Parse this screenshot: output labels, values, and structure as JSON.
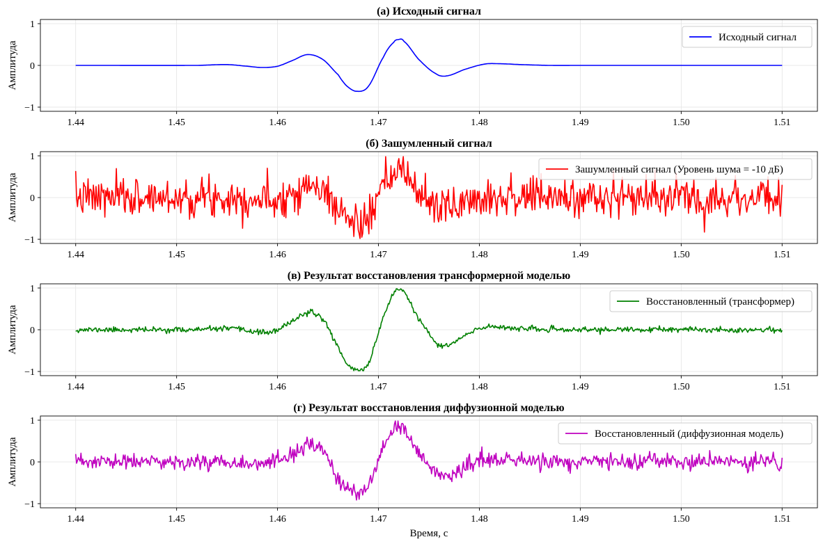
{
  "figure": {
    "xlabel": "Время, с",
    "colors": {
      "grid": "#e3e3e3",
      "axis": "#000000",
      "legend_border": "#cccccc"
    }
  },
  "chart_data": [
    {
      "type": "line",
      "title": "(а) Исходный сигнал",
      "ylabel": "Амплитуда",
      "xlim": [
        1.4365,
        1.5135
      ],
      "ylim": [
        -1.1,
        1.1
      ],
      "xticks": [
        1.44,
        1.45,
        1.46,
        1.47,
        1.48,
        1.49,
        1.5,
        1.51
      ],
      "xtick_labels": [
        "1.44",
        "1.45",
        "1.46",
        "1.47",
        "1.48",
        "1.49",
        "1.50",
        "1.51"
      ],
      "yticks": [
        -1,
        0,
        1
      ],
      "ytick_labels": [
        "−1",
        "0",
        "1"
      ],
      "series": [
        {
          "name": "Исходный сигнал",
          "color": "#0000ff",
          "x": [
            1.44,
            1.452,
            1.455,
            1.457,
            1.4585,
            1.46,
            1.4615,
            1.463,
            1.4645,
            1.466,
            1.4668,
            1.4678,
            1.469,
            1.4705,
            1.4715,
            1.472,
            1.4725,
            1.474,
            1.4757,
            1.4768,
            1.4785,
            1.4805,
            1.482,
            1.484,
            1.487,
            1.49,
            1.51
          ],
          "y": [
            0.0,
            0.0,
            0.02,
            -0.02,
            -0.05,
            -0.02,
            0.12,
            0.26,
            0.14,
            -0.22,
            -0.48,
            -0.62,
            -0.5,
            0.2,
            0.55,
            0.62,
            0.58,
            0.14,
            -0.2,
            -0.25,
            -0.1,
            0.03,
            0.04,
            0.02,
            0.0,
            0.0,
            0.0
          ]
        }
      ],
      "legend": {
        "position": "top-right"
      }
    },
    {
      "type": "line",
      "title": "(б) Зашумленный сигнал",
      "ylabel": "Амплитуда",
      "xlim": [
        1.4365,
        1.5135
      ],
      "ylim": [
        -1.1,
        1.1
      ],
      "xticks": [
        1.44,
        1.45,
        1.46,
        1.47,
        1.48,
        1.49,
        1.5,
        1.51
      ],
      "xtick_labels": [
        "1.44",
        "1.45",
        "1.46",
        "1.47",
        "1.48",
        "1.49",
        "1.50",
        "1.51"
      ],
      "yticks": [
        -1,
        0,
        1
      ],
      "ytick_labels": [
        "−1",
        "0",
        "1"
      ],
      "series": [
        {
          "name": "Зашумленный сигнал (Уровень шума = -10 дБ)",
          "color": "#ff0000",
          "x_range": [
            1.44,
            1.51
          ],
          "n_points": 800,
          "underlying": "Исходный сигнал",
          "noise_std": 0.23,
          "noise_seed": 7
        }
      ],
      "legend": {
        "position": "top-right"
      }
    },
    {
      "type": "line",
      "title": "(в) Результат восстановления трансформерной моделью",
      "ylabel": "Амплитуда",
      "xlim": [
        1.4365,
        1.5135
      ],
      "ylim": [
        -1.1,
        1.1
      ],
      "xticks": [
        1.44,
        1.45,
        1.46,
        1.47,
        1.48,
        1.49,
        1.5,
        1.51
      ],
      "xtick_labels": [
        "1.44",
        "1.45",
        "1.46",
        "1.47",
        "1.48",
        "1.49",
        "1.50",
        "1.51"
      ],
      "yticks": [
        -1,
        0,
        1
      ],
      "ytick_labels": [
        "−1",
        "0",
        "1"
      ],
      "series": [
        {
          "name": "Восстановленный (трансформер)",
          "color": "#008000",
          "x": [
            1.44,
            1.452,
            1.455,
            1.457,
            1.4585,
            1.46,
            1.4615,
            1.463,
            1.4645,
            1.466,
            1.4668,
            1.4678,
            1.469,
            1.4705,
            1.4715,
            1.472,
            1.4725,
            1.474,
            1.4757,
            1.4768,
            1.4785,
            1.4805,
            1.482,
            1.484,
            1.487,
            1.49,
            1.51
          ],
          "y": [
            0.0,
            0.0,
            0.03,
            -0.02,
            -0.06,
            -0.02,
            0.22,
            0.4,
            0.25,
            -0.4,
            -0.78,
            -0.97,
            -0.8,
            0.3,
            0.85,
            0.97,
            0.9,
            0.25,
            -0.3,
            -0.38,
            -0.15,
            0.06,
            0.07,
            0.03,
            0.0,
            0.0,
            0.0
          ],
          "n_points": 800,
          "noise_std": 0.032,
          "noise_seed": 11
        }
      ],
      "legend": {
        "position": "top-right"
      }
    },
    {
      "type": "line",
      "title": "(г) Результат восстановления диффузионной моделью",
      "ylabel": "Амплитуда",
      "xlim": [
        1.4365,
        1.5135
      ],
      "ylim": [
        -1.1,
        1.1
      ],
      "xticks": [
        1.44,
        1.45,
        1.46,
        1.47,
        1.48,
        1.49,
        1.5,
        1.51
      ],
      "xtick_labels": [
        "1.44",
        "1.45",
        "1.46",
        "1.47",
        "1.48",
        "1.49",
        "1.50",
        "1.51"
      ],
      "yticks": [
        -1,
        0,
        1
      ],
      "ytick_labels": [
        "−1",
        "0",
        "1"
      ],
      "series": [
        {
          "name": "Восстановленный (диффузионная модель)",
          "color": "#bf00bf",
          "x": [
            1.44,
            1.452,
            1.455,
            1.457,
            1.4585,
            1.46,
            1.4615,
            1.463,
            1.4645,
            1.466,
            1.4668,
            1.4678,
            1.469,
            1.4705,
            1.4715,
            1.472,
            1.4725,
            1.474,
            1.4757,
            1.4768,
            1.4785,
            1.4805,
            1.482,
            1.484,
            1.487,
            1.49,
            1.51
          ],
          "y": [
            0.0,
            0.0,
            0.02,
            -0.02,
            -0.05,
            -0.02,
            0.2,
            0.38,
            0.22,
            -0.35,
            -0.62,
            -0.75,
            -0.6,
            0.3,
            0.72,
            0.82,
            0.75,
            0.22,
            -0.25,
            -0.32,
            -0.12,
            0.05,
            0.05,
            0.02,
            0.0,
            0.0,
            0.0
          ],
          "n_points": 800,
          "noise_std": 0.095,
          "noise_seed": 23
        }
      ],
      "legend": {
        "position": "top-right"
      }
    }
  ]
}
